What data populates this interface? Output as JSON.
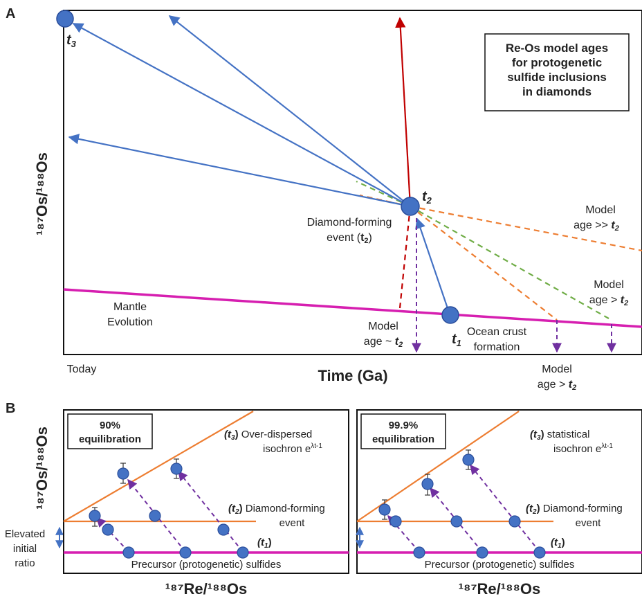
{
  "colors": {
    "blue": "#4472c4",
    "point_fill": "#4472c4",
    "point_stroke": "#2a4d9a",
    "red": "#c00000",
    "magenta": "#d61fb0",
    "orange": "#ed7d31",
    "green": "#70ad47",
    "purple": "#7030a0"
  },
  "panel_a": {
    "letter": "A",
    "title_box": [
      "Re-Os model ages",
      "for protogenetic",
      "sulfide inclusions",
      "in diamonds"
    ],
    "y_axis": "¹⁸⁷Os/¹⁸⁸Os",
    "x_axis": "Time (Ga)",
    "today": "Today",
    "t3": "t",
    "t3_sub": "3",
    "t2": "t",
    "t2_sub": "2",
    "t1": "t",
    "t1_sub": "1",
    "diamond_event_1": "Diamond-forming",
    "diamond_event_2": "event (",
    "diamond_event_t": "t",
    "diamond_event_sub": "2",
    "diamond_event_close": ")",
    "mantle_1": "Mantle",
    "mantle_2": "Evolution",
    "ocean_1": "Ocean crust",
    "ocean_2": "formation",
    "model_approx_1": "Model",
    "model_approx_2": "age ~ ",
    "model_much_1": "Model",
    "model_much_2": "age >> ",
    "model_gt_right_1": "Model",
    "model_gt_right_2": "age > ",
    "model_gt_bottom_1": "Model",
    "model_gt_bottom_2": "age > ",
    "t2_small": "t",
    "t2_small_sub": "2"
  },
  "panel_b": {
    "letter": "B",
    "y_axis": "¹⁸⁷Os/¹⁸⁸Os",
    "elevated": [
      "Elevated",
      "initial",
      "ratio"
    ],
    "left": {
      "box": [
        "90%",
        "equilibration"
      ],
      "t3_label_1": "Over-dispersed",
      "t3_label_2": "isochron e",
      "exp": "λt-1",
      "t2_label_1": "Diamond-forming",
      "t2_label_2": "event",
      "precursor": "Precursor (protogenetic) sulfides",
      "x_axis": "¹⁸⁷Re/¹⁸⁸Os"
    },
    "right": {
      "box": [
        "99.9%",
        "equilibration"
      ],
      "t3_label_1": "statistical",
      "t3_label_2": "isochron e",
      "exp": "λt-1",
      "t2_label_1": "Diamond-forming",
      "t2_label_2": "event",
      "precursor": "Precursor (protogenetic) sulfides",
      "x_axis": "¹⁸⁷Re/¹⁸⁸Os"
    },
    "t3_paren": "(t",
    "t3_sub": "3",
    "t2_paren": "(t",
    "t2_sub": "2",
    "t1_paren": "(t",
    "t1_sub": "1",
    "close_paren": ")"
  }
}
